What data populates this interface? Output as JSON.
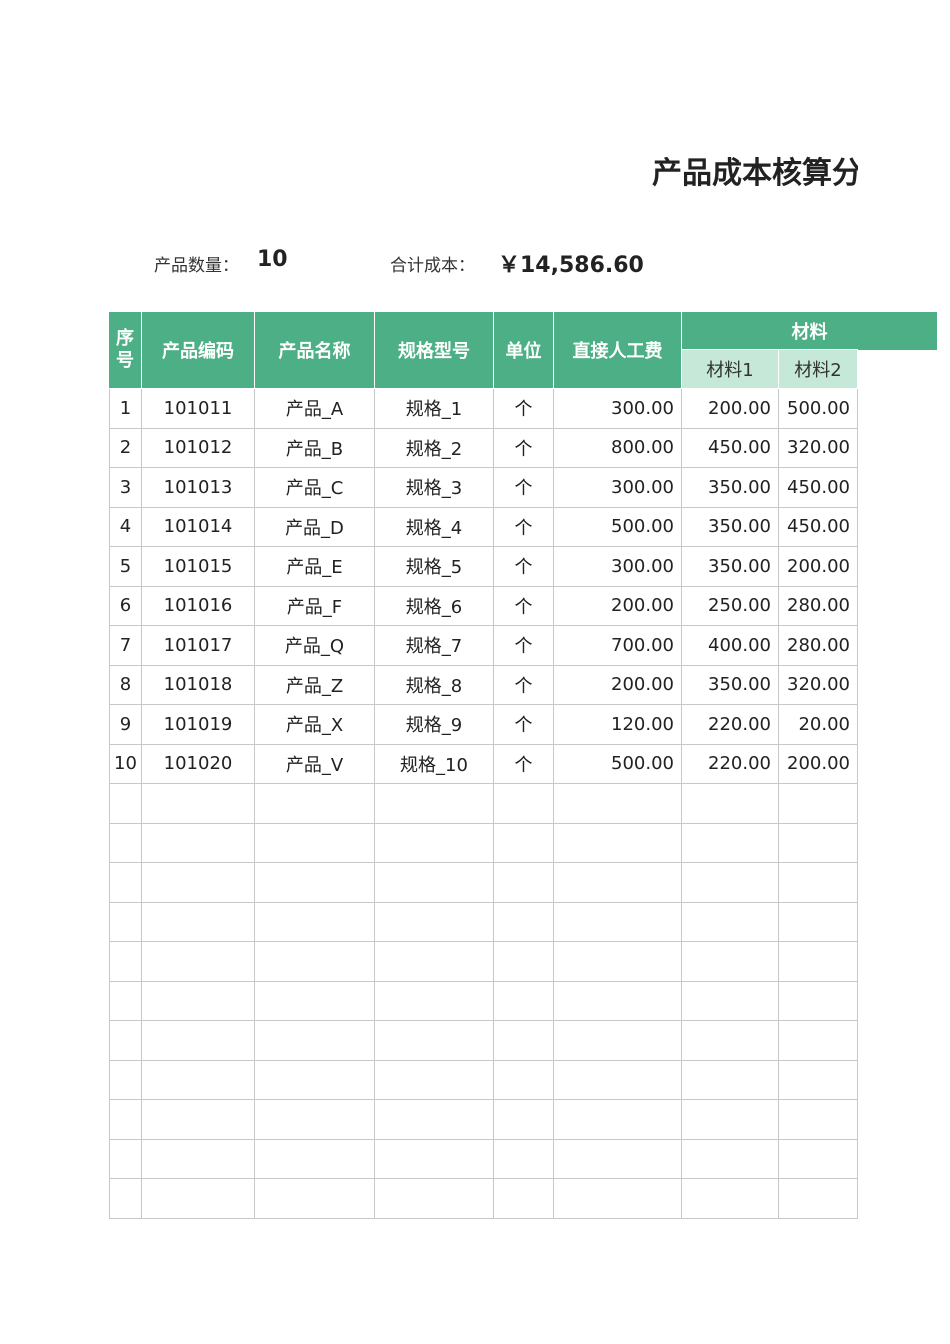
{
  "title": "产品成本核算分",
  "summary": {
    "count_label": "产品数量：",
    "count": "10",
    "total_label": "合计成本：",
    "total": "￥14,586.60"
  },
  "table": {
    "headers": [
      "序号",
      "产品编码",
      "产品名称",
      "规格型号",
      "单位",
      "直接人工费"
    ],
    "group_header": "材料",
    "sub_headers": [
      "材料1",
      "材料2"
    ],
    "rows": [
      [
        "1",
        "101011",
        "产品_A",
        "规格_1",
        "个",
        "300.00",
        "200.00",
        "500.00"
      ],
      [
        "2",
        "101012",
        "产品_B",
        "规格_2",
        "个",
        "800.00",
        "450.00",
        "320.00"
      ],
      [
        "3",
        "101013",
        "产品_C",
        "规格_3",
        "个",
        "300.00",
        "350.00",
        "450.00"
      ],
      [
        "4",
        "101014",
        "产品_D",
        "规格_4",
        "个",
        "500.00",
        "350.00",
        "450.00"
      ],
      [
        "5",
        "101015",
        "产品_E",
        "规格_5",
        "个",
        "300.00",
        "350.00",
        "200.00"
      ],
      [
        "6",
        "101016",
        "产品_F",
        "规格_6",
        "个",
        "200.00",
        "250.00",
        "280.00"
      ],
      [
        "7",
        "101017",
        "产品_Q",
        "规格_7",
        "个",
        "700.00",
        "400.00",
        "280.00"
      ],
      [
        "8",
        "101018",
        "产品_Z",
        "规格_8",
        "个",
        "200.00",
        "350.00",
        "320.00"
      ],
      [
        "9",
        "101019",
        "产品_X",
        "规格_9",
        "个",
        "120.00",
        "220.00",
        "20.00"
      ],
      [
        "10",
        "101020",
        "产品_V",
        "规格_10",
        "个",
        "500.00",
        "220.00",
        "200.00"
      ]
    ]
  }
}
